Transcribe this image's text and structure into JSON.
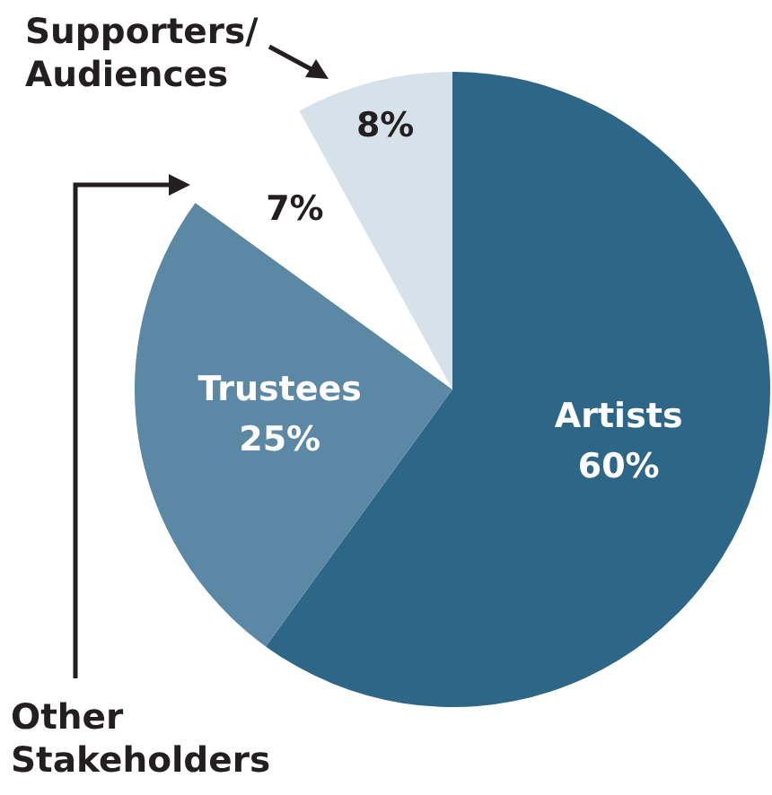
{
  "chart_data": {
    "type": "pie",
    "categories": [
      "Artists",
      "Trustees",
      "Other Stakeholders",
      "Supporters/ Audiences"
    ],
    "values": [
      60,
      25,
      7,
      8
    ],
    "colors": [
      "#2e6688",
      "#5a88a5",
      "#ffffff",
      "#d6e1ea"
    ],
    "value_labels": [
      "60%",
      "25%",
      "7%",
      "8%"
    ],
    "legend": false
  }
}
